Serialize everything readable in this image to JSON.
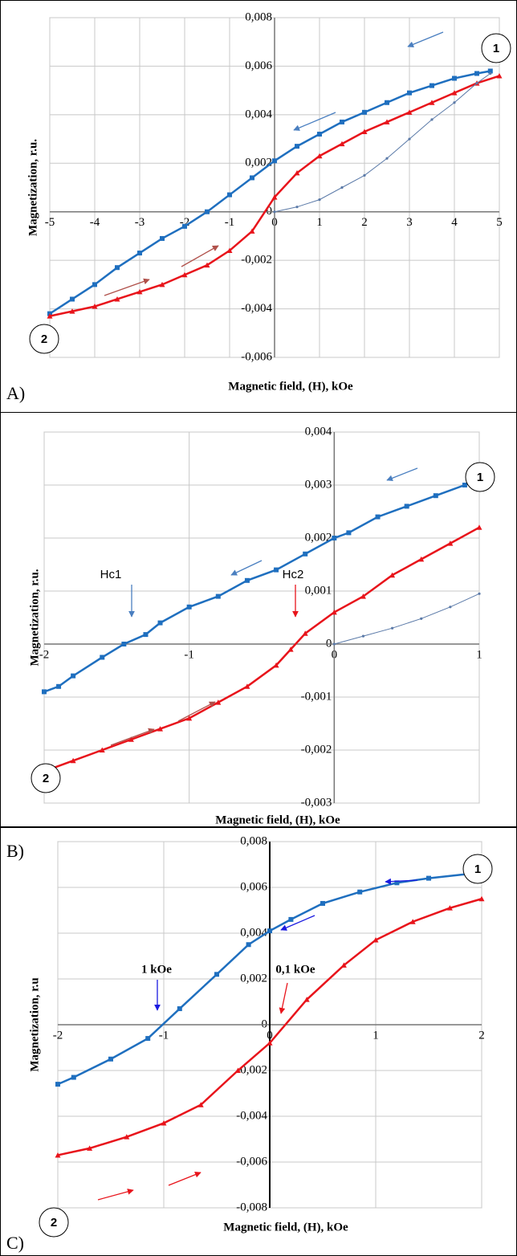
{
  "chart_data": [
    {
      "type": "line",
      "xlabel": "Magnetic field, (H), kOe",
      "ylabel": "Magnetization, r.u.",
      "panel": "A)",
      "xlim": [
        -5,
        5
      ],
      "xticks": [
        -5,
        -4,
        -3,
        -2,
        -1,
        0,
        1,
        2,
        3,
        4,
        5
      ],
      "ylim": [
        -0.006,
        0.008
      ],
      "yticks": [
        {
          "value": -0.006,
          "label": "-0,006"
        },
        {
          "value": -0.004,
          "label": "-0,004"
        },
        {
          "value": -0.002,
          "label": "-0,002"
        },
        0,
        {
          "value": 0.002,
          "label": "0,002"
        },
        {
          "value": 0.004,
          "label": "0,004"
        },
        {
          "value": 0.006,
          "label": "0,006"
        },
        {
          "value": 0.008,
          "label": "0,008"
        }
      ],
      "grid": true,
      "series": [
        {
          "color": "#1f6fbf",
          "marker": "square",
          "x": [
            4.8,
            4.5,
            4,
            3.5,
            3,
            2.5,
            2,
            1.5,
            1,
            0.5,
            0,
            -0.5,
            -1,
            -1.5,
            -2,
            -2.5,
            -3,
            -3.5,
            -4,
            -4.5,
            -5
          ],
          "values": [
            0.0058,
            0.0057,
            0.0055,
            0.0052,
            0.0049,
            0.0045,
            0.0041,
            0.0037,
            0.0032,
            0.0027,
            0.0021,
            0.0014,
            0.0007,
            0.0,
            -0.0006,
            -0.0011,
            -0.0017,
            -0.0023,
            -0.003,
            -0.0036,
            -0.0042
          ]
        },
        {
          "color": "#e8141b",
          "marker": "triangle",
          "x": [
            -5,
            -4.5,
            -4,
            -3.5,
            -3,
            -2.5,
            -2,
            -1.5,
            -1,
            -0.5,
            0,
            0.5,
            1,
            1.5,
            2,
            2.5,
            3,
            3.5,
            4,
            4.5,
            5
          ],
          "values": [
            -0.0043,
            -0.0041,
            -0.0039,
            -0.0036,
            -0.0033,
            -0.003,
            -0.0026,
            -0.0022,
            -0.0016,
            -0.0008,
            0.0006,
            0.0016,
            0.0023,
            0.0028,
            0.0033,
            0.0037,
            0.0041,
            0.0045,
            0.0049,
            0.0053,
            0.0056
          ]
        },
        {
          "color": "#5b7aa8",
          "marker": "dot",
          "x": [
            0,
            0.5,
            1,
            1.5,
            2,
            2.5,
            3,
            3.5,
            4,
            4.5,
            4.8
          ],
          "values": [
            0.0,
            0.0002,
            0.0005,
            0.001,
            0.0015,
            0.0022,
            0.003,
            0.0038,
            0.0045,
            0.0053,
            0.0057
          ]
        }
      ],
      "annotations": [
        "1",
        "2"
      ]
    },
    {
      "type": "line",
      "xlabel": "Magnetic field, (H), kOe",
      "ylabel": "Magnetization, r.u.",
      "panel": "B)",
      "xlim": [
        -2,
        1
      ],
      "xticks": [
        -2,
        -1,
        0,
        1
      ],
      "ylim": [
        -0.003,
        0.004
      ],
      "yticks": [
        {
          "value": -0.003,
          "label": "-0,003"
        },
        {
          "value": -0.002,
          "label": "-0,002"
        },
        {
          "value": -0.001,
          "label": "-0,001"
        },
        0,
        {
          "value": 0.001,
          "label": "0,001"
        },
        {
          "value": 0.002,
          "label": "0,002"
        },
        {
          "value": 0.003,
          "label": "0,003"
        },
        {
          "value": 0.004,
          "label": "0,004"
        }
      ],
      "grid": true,
      "series": [
        {
          "color": "#1f6fbf",
          "marker": "square",
          "x": [
            1,
            0.9,
            0.7,
            0.5,
            0.3,
            0.1,
            0,
            -0.2,
            -0.4,
            -0.6,
            -0.8,
            -1,
            -1.2,
            -1.3,
            -1.45,
            -1.6,
            -1.8,
            -1.9,
            -2
          ],
          "values": [
            0.0031,
            0.003,
            0.0028,
            0.0026,
            0.0024,
            0.0021,
            0.002,
            0.0017,
            0.0014,
            0.0012,
            0.0009,
            0.0007,
            0.0004,
            0.00018,
            0.0,
            -0.00025,
            -0.0006,
            -0.0008,
            -0.0009
          ]
        },
        {
          "color": "#e8141b",
          "marker": "triangle",
          "x": [
            -2,
            -1.8,
            -1.6,
            -1.4,
            -1.2,
            -1,
            -0.8,
            -0.6,
            -0.4,
            -0.3,
            -0.2,
            0,
            0.2,
            0.4,
            0.6,
            0.8,
            1
          ],
          "values": [
            -0.0024,
            -0.0022,
            -0.002,
            -0.0018,
            -0.0016,
            -0.0014,
            -0.0011,
            -0.0008,
            -0.0004,
            -0.0001,
            0.0002,
            0.0006,
            0.0009,
            0.0013,
            0.0016,
            0.0019,
            0.0022
          ]
        },
        {
          "color": "#5b7aa8",
          "marker": "dot",
          "x": [
            0,
            0.2,
            0.4,
            0.6,
            0.8,
            1
          ],
          "values": [
            0.0,
            0.00015,
            0.0003,
            0.00048,
            0.0007,
            0.00095
          ]
        }
      ],
      "annotations": [
        "1",
        "2",
        "Hc1",
        "Hc2"
      ]
    },
    {
      "type": "line",
      "xlabel": "Magnetic field, (H), kOe",
      "ylabel": "Magnetization, r.u",
      "panel": "C)",
      "xlim": [
        -2,
        2
      ],
      "xticks": [
        -2,
        -1,
        0,
        1,
        2
      ],
      "ylim": [
        -0.008,
        0.008
      ],
      "yticks": [
        {
          "value": -0.008,
          "label": "-0,008"
        },
        {
          "value": -0.006,
          "label": "-0,006"
        },
        {
          "value": -0.004,
          "label": "-0,004"
        },
        {
          "value": -0.002,
          "label": "-0,002"
        },
        0,
        {
          "value": 0.002,
          "label": "0,002"
        },
        {
          "value": 0.004,
          "label": "0,004"
        },
        {
          "value": 0.006,
          "label": "0,006"
        },
        {
          "value": 0.008,
          "label": "0,008"
        }
      ],
      "grid": true,
      "series": [
        {
          "color": "#1f6fbf",
          "marker": "square",
          "x": [
            1.9,
            1.5,
            1.2,
            0.85,
            0.5,
            0.2,
            0,
            -0.2,
            -0.5,
            -0.85,
            -1.15,
            -1.5,
            -1.85,
            -2
          ],
          "values": [
            0.0066,
            0.0064,
            0.0062,
            0.0058,
            0.0053,
            0.0046,
            0.0041,
            0.0035,
            0.0022,
            0.0007,
            -0.0006,
            -0.0015,
            -0.0023,
            -0.0026
          ]
        },
        {
          "color": "#e8141b",
          "marker": "triangle",
          "x": [
            -2,
            -1.7,
            -1.35,
            -1,
            -0.65,
            -0.3,
            0,
            0.35,
            0.7,
            1,
            1.35,
            1.7,
            2
          ],
          "values": [
            -0.0057,
            -0.0054,
            -0.0049,
            -0.0043,
            -0.0035,
            -0.002,
            -0.0008,
            0.0011,
            0.0026,
            0.0037,
            0.0045,
            0.0051,
            0.0055
          ]
        }
      ],
      "annotations": [
        "1",
        "2",
        "1 kOe",
        "0,1 kOe"
      ]
    }
  ]
}
